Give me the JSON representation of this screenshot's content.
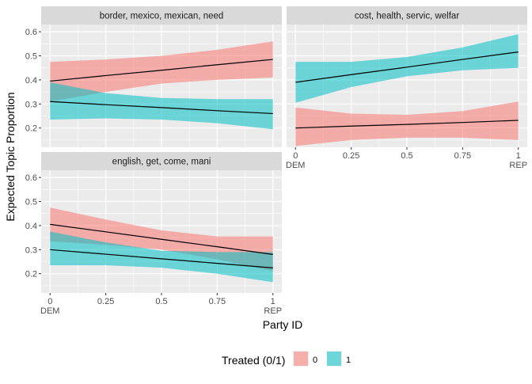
{
  "figure": {
    "ylabel": "Expected Topic Proportion",
    "xlabel": "Party ID",
    "legend": {
      "title": "Treated (0/1)",
      "placement": "bottom"
    }
  },
  "colors": {
    "treated_0": "#F8766D",
    "treated_1": "#00BFC4",
    "panel_bg": "#EBEBEB",
    "strip_bg": "#D9D9D9",
    "line": "#000000"
  },
  "chart_data": {
    "type": "line",
    "facets": [
      "border, mexico, mexican, need",
      "cost, health, servic, welfar",
      "english, get, come, mani"
    ],
    "x_ticks": [
      0,
      0.25,
      0.5,
      0.75,
      1
    ],
    "x_tick_labels": [
      "0",
      "0.25",
      "0.5",
      "0.75",
      "1"
    ],
    "x_extra_labels": {
      "0": "DEM",
      "1": "REP"
    },
    "y_ticks": [
      0.2,
      0.3,
      0.4,
      0.5,
      0.6
    ],
    "y_tick_labels": [
      "0.2",
      "0.3",
      "0.4",
      "0.5",
      "0.6"
    ],
    "xlim": [
      -0.04,
      1.04
    ],
    "ylim": [
      0.12,
      0.63
    ],
    "legend_entries": [
      {
        "label": "0",
        "color": "#F8766D"
      },
      {
        "label": "1",
        "color": "#00BFC4"
      }
    ],
    "panels": [
      {
        "facet": "border, mexico, mexican, need",
        "series": [
          {
            "treated": "0",
            "color": "#F8766D",
            "x": [
              0,
              0.25,
              0.5,
              0.75,
              1
            ],
            "y": [
              0.395,
              0.418,
              0.44,
              0.463,
              0.485
            ],
            "lower": [
              0.31,
              0.35,
              0.385,
              0.4,
              0.41
            ],
            "upper": [
              0.475,
              0.485,
              0.5,
              0.525,
              0.56
            ]
          },
          {
            "treated": "1",
            "color": "#00BFC4",
            "x": [
              0,
              0.25,
              0.5,
              0.75,
              1
            ],
            "y": [
              0.31,
              0.297,
              0.285,
              0.272,
              0.26
            ],
            "lower": [
              0.235,
              0.24,
              0.235,
              0.22,
              0.195
            ],
            "upper": [
              0.39,
              0.345,
              0.325,
              0.32,
              0.32
            ]
          }
        ]
      },
      {
        "facet": "cost, health, servic, welfar",
        "series": [
          {
            "treated": "0",
            "color": "#F8766D",
            "x": [
              0,
              0.25,
              0.5,
              0.75,
              1
            ],
            "y": [
              0.2,
              0.208,
              0.215,
              0.223,
              0.232
            ],
            "lower": [
              0.125,
              0.15,
              0.16,
              0.16,
              0.15
            ],
            "upper": [
              0.285,
              0.26,
              0.255,
              0.27,
              0.31
            ]
          },
          {
            "treated": "1",
            "color": "#00BFC4",
            "x": [
              0,
              0.25,
              0.5,
              0.75,
              1
            ],
            "y": [
              0.39,
              0.422,
              0.453,
              0.485,
              0.516
            ],
            "lower": [
              0.305,
              0.37,
              0.415,
              0.44,
              0.45
            ],
            "upper": [
              0.475,
              0.475,
              0.495,
              0.535,
              0.59
            ]
          }
        ]
      },
      {
        "facet": "english, get, come, mani",
        "series": [
          {
            "treated": "0",
            "color": "#F8766D",
            "x": [
              0,
              0.25,
              0.5,
              0.75,
              1
            ],
            "y": [
              0.405,
              0.374,
              0.343,
              0.312,
              0.28
            ],
            "lower": [
              0.335,
              0.32,
              0.3,
              0.26,
              0.21
            ],
            "upper": [
              0.475,
              0.425,
              0.38,
              0.355,
              0.355
            ]
          },
          {
            "treated": "1",
            "color": "#00BFC4",
            "x": [
              0,
              0.25,
              0.5,
              0.75,
              1
            ],
            "y": [
              0.3,
              0.281,
              0.262,
              0.243,
              0.224
            ],
            "lower": [
              0.235,
              0.235,
              0.225,
              0.2,
              0.165
            ],
            "upper": [
              0.375,
              0.33,
              0.295,
              0.29,
              0.29
            ]
          }
        ]
      }
    ]
  }
}
